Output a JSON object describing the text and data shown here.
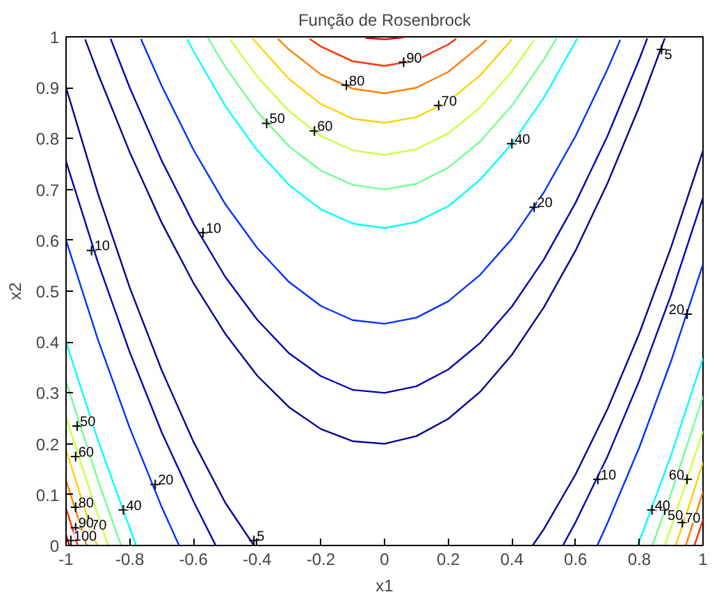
{
  "chart_data": {
    "type": "line",
    "title": "Função de Rosenbrock",
    "xlabel": "x1",
    "ylabel": "x2",
    "xlim": [
      -1,
      1
    ],
    "ylim": [
      0,
      1
    ],
    "xticks": [
      -1,
      -0.8,
      -0.6,
      -0.4,
      -0.2,
      0,
      0.2,
      0.4,
      0.6,
      0.8,
      1
    ],
    "yticks": [
      0,
      0.1,
      0.2,
      0.3,
      0.4,
      0.5,
      0.6,
      0.7,
      0.8,
      0.9,
      1
    ],
    "series": [
      {
        "color": "#000090",
        "x": [
          -1,
          -0.9,
          -0.8,
          -0.7,
          -0.6,
          -0.5,
          -0.41,
          null,
          -0.94,
          -0.9,
          -0.8,
          -0.7,
          -0.6,
          -0.5,
          -0.4,
          -0.3,
          -0.2,
          -0.1,
          0,
          0.1,
          0.2,
          0.3,
          0.4,
          0.5,
          0.6,
          0.7,
          0.8,
          0.88,
          null,
          0.465,
          0.5,
          0.6,
          0.7,
          0.8,
          0.9,
          1
        ],
        "values": [
          0.9,
          0.692,
          0.507,
          0.345,
          0.204,
          0.084,
          0,
          null,
          0.995,
          0.928,
          0.773,
          0.635,
          0.516,
          0.416,
          0.334,
          0.272,
          0.229,
          0.205,
          0.2,
          0.215,
          0.249,
          0.302,
          0.375,
          0.468,
          0.58,
          0.712,
          0.863,
          0.997,
          null,
          0,
          0.032,
          0.14,
          0.268,
          0.417,
          0.587,
          0.776
        ]
      },
      {
        "color": "#0000b4",
        "x": [
          -1,
          -0.9,
          -0.8,
          -0.7,
          -0.6,
          -0.53,
          null,
          -0.86,
          -0.8,
          -0.7,
          -0.6,
          -0.5,
          -0.4,
          -0.3,
          -0.2,
          -0.1,
          0,
          0.1,
          0.2,
          0.3,
          0.4,
          0.5,
          0.6,
          0.7,
          0.8,
          0.825,
          null,
          0.56,
          0.6,
          0.7,
          0.8,
          0.9,
          1
        ],
        "values": [
          0.755,
          0.557,
          0.38,
          0.223,
          0.087,
          0,
          null,
          0.996,
          0.9,
          0.757,
          0.633,
          0.528,
          0.444,
          0.378,
          0.333,
          0.306,
          0.3,
          0.313,
          0.346,
          0.398,
          0.47,
          0.562,
          0.674,
          0.805,
          0.956,
          0.997,
          null,
          0,
          0.046,
          0.175,
          0.324,
          0.493,
          0.684
        ]
      },
      {
        "color": "#0030ff",
        "x": [
          -1,
          -0.9,
          -0.8,
          -0.7,
          -0.645,
          null,
          -0.765,
          -0.7,
          -0.6,
          -0.5,
          -0.4,
          -0.3,
          -0.2,
          -0.1,
          0,
          0.1,
          0.2,
          0.3,
          0.4,
          0.5,
          0.6,
          0.7,
          0.74,
          null,
          0.668,
          0.7,
          0.8,
          0.9,
          1
        ],
        "values": [
          0.6,
          0.405,
          0.231,
          0.076,
          0,
          null,
          0.996,
          0.904,
          0.778,
          0.671,
          0.585,
          0.518,
          0.471,
          0.443,
          0.436,
          0.448,
          0.48,
          0.532,
          0.603,
          0.694,
          0.805,
          0.936,
          0.994,
          null,
          0,
          0.044,
          0.193,
          0.363,
          0.553
        ]
      },
      {
        "color": "#00ffff",
        "x": [
          -1,
          -0.9,
          -0.8,
          -0.78,
          null,
          -0.62,
          -0.6,
          -0.5,
          -0.4,
          -0.3,
          -0.2,
          -0.1,
          0,
          0.1,
          0.2,
          0.3,
          0.4,
          0.5,
          0.6,
          0.605,
          null,
          0.794,
          0.8,
          0.9,
          1
        ],
        "values": [
          0.4,
          0.207,
          0.034,
          0,
          null,
          0.995,
          0.972,
          0.864,
          0.777,
          0.709,
          0.661,
          0.633,
          0.624,
          0.636,
          0.667,
          0.719,
          0.79,
          0.88,
          0.991,
          0.997,
          null,
          0,
          0.008,
          0.178,
          0.368
        ]
      },
      {
        "color": "#70ff90",
        "x": [
          -1,
          -0.9,
          -0.85,
          -0.827,
          null,
          -0.555,
          -0.5,
          -0.4,
          -0.3,
          -0.2,
          -0.1,
          0,
          0.1,
          0.2,
          0.3,
          0.4,
          0.5,
          0.54,
          null,
          0.841,
          0.9,
          1
        ],
        "values": [
          0.322,
          0.129,
          0.04,
          0,
          null,
          0.998,
          0.941,
          0.853,
          0.785,
          0.737,
          0.709,
          0.7,
          0.711,
          0.743,
          0.794,
          0.865,
          0.955,
          0.997,
          null,
          0,
          0.103,
          0.293
        ]
      },
      {
        "color": "#c8ff40",
        "x": [
          -1,
          -0.9,
          -0.868,
          null,
          -0.485,
          -0.4,
          -0.3,
          -0.2,
          -0.1,
          0,
          0.1,
          0.2,
          0.3,
          0.4,
          0.47,
          null,
          0.88,
          0.9,
          1
        ],
        "values": [
          0.252,
          0.059,
          0,
          null,
          0.995,
          0.922,
          0.854,
          0.805,
          0.777,
          0.768,
          0.779,
          0.81,
          0.861,
          0.932,
          0.994,
          null,
          0,
          0.036,
          0.225
        ]
      },
      {
        "color": "#ffd000",
        "x": [
          -1,
          -0.95,
          -0.903,
          null,
          -0.415,
          -0.3,
          -0.2,
          -0.1,
          0,
          0.1,
          0.2,
          0.3,
          0.4,
          null,
          0.914,
          0.95,
          1
        ],
        "values": [
          0.188,
          0.089,
          0,
          null,
          0.997,
          0.917,
          0.868,
          0.839,
          0.831,
          0.842,
          0.873,
          0.924,
          0.995,
          null,
          0,
          0.066,
          0.163
        ]
      },
      {
        "color": "#ff8000",
        "x": [
          -1,
          -0.95,
          -0.935,
          null,
          -0.335,
          -0.3,
          -0.2,
          -0.1,
          0,
          0.1,
          0.2,
          0.3,
          0.32,
          null,
          0.946,
          0.97,
          1
        ],
        "values": [
          0.128,
          0.03,
          0,
          null,
          0.996,
          0.975,
          0.926,
          0.898,
          0.889,
          0.9,
          0.931,
          0.982,
          0.994,
          null,
          0,
          0.047,
          0.106
        ]
      },
      {
        "color": "#ff3000",
        "x": [
          -1,
          -0.963,
          null,
          -0.235,
          -0.2,
          -0.1,
          0,
          0.1,
          0.2,
          0.225,
          null,
          0.973,
          1
        ],
        "values": [
          0.073,
          0,
          null,
          0.996,
          0.981,
          0.952,
          0.943,
          0.954,
          0.985,
          0.996,
          null,
          0,
          0.051
        ]
      },
      {
        "color": "#d00000",
        "x": [
          -1,
          -0.99,
          null,
          -0.06,
          0,
          0.06
        ],
        "values": [
          0.02,
          0,
          null,
          0.998,
          0.995,
          0.999
        ]
      }
    ],
    "annotations": [
      {
        "text": "90",
        "x": 0.06,
        "y": 0.95
      },
      {
        "text": "80",
        "x": -0.12,
        "y": 0.905
      },
      {
        "text": "70",
        "x": 0.17,
        "y": 0.865
      },
      {
        "text": "50",
        "x": -0.37,
        "y": 0.83
      },
      {
        "text": "60",
        "x": -0.22,
        "y": 0.815
      },
      {
        "text": "40",
        "x": 0.4,
        "y": 0.79
      },
      {
        "text": "20",
        "x": 0.47,
        "y": 0.665
      },
      {
        "text": "10",
        "x": -0.57,
        "y": 0.615
      },
      {
        "text": "10",
        "x": -0.92,
        "y": 0.58
      },
      {
        "text": "5",
        "x": 0.87,
        "y": 0.975
      },
      {
        "text": "20",
        "x": 0.95,
        "y": 0.455
      },
      {
        "text": "50",
        "x": -0.965,
        "y": 0.235
      },
      {
        "text": "60",
        "x": -0.97,
        "y": 0.175
      },
      {
        "text": "20",
        "x": -0.72,
        "y": 0.12
      },
      {
        "text": "40",
        "x": -0.82,
        "y": 0.07
      },
      {
        "text": "80",
        "x": -0.97,
        "y": 0.075
      },
      {
        "text": "70",
        "x": -0.93,
        "y": 0.05
      },
      {
        "text": "90",
        "x": -0.97,
        "y": 0.035
      },
      {
        "text": "100",
        "x": -0.985,
        "y": 0.01
      },
      {
        "text": "5",
        "x": -0.41,
        "y": 0.01
      },
      {
        "text": "10",
        "x": 0.67,
        "y": 0.13
      },
      {
        "text": "40",
        "x": 0.84,
        "y": 0.07
      },
      {
        "text": "50",
        "x": 0.88,
        "y": 0.07
      },
      {
        "text": "60",
        "x": 0.95,
        "y": 0.13
      },
      {
        "text": "70",
        "x": 0.935,
        "y": 0.045
      }
    ]
  }
}
